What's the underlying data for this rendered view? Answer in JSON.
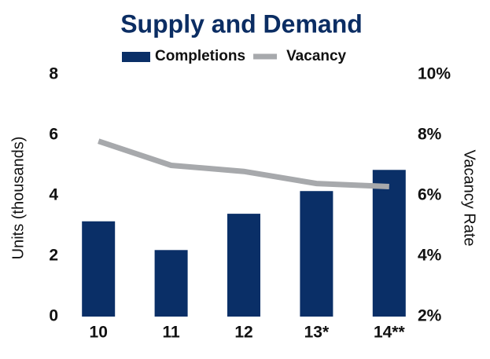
{
  "chart_data": {
    "type": "bar",
    "title": "Supply and Demand",
    "categories": [
      "10",
      "11",
      "12",
      "13*",
      "14**"
    ],
    "series": [
      {
        "name": "Completions",
        "color": "#0a2f67",
        "values": [
          3.15,
          2.2,
          3.4,
          4.15,
          4.85
        ]
      },
      {
        "name": "Vacancy",
        "color": "#a7a9ac",
        "type": "line",
        "axis": "y2",
        "values": [
          7.8,
          7.0,
          6.8,
          6.4,
          6.3
        ]
      }
    ],
    "ylabel": "Units (thousands)",
    "y2label": "Vacancy Rate",
    "ylim": [
      0,
      8
    ],
    "yticks": [
      0,
      2,
      4,
      6,
      8
    ],
    "y2lim": [
      2,
      10
    ],
    "y2ticks": [
      {
        "value": 2,
        "label": "2%"
      },
      {
        "value": 4,
        "label": "4%"
      },
      {
        "value": 6,
        "label": "6%"
      },
      {
        "value": 8,
        "label": "8%"
      },
      {
        "value": 10,
        "label": "10%"
      }
    ],
    "grid": false,
    "legend": "top"
  }
}
